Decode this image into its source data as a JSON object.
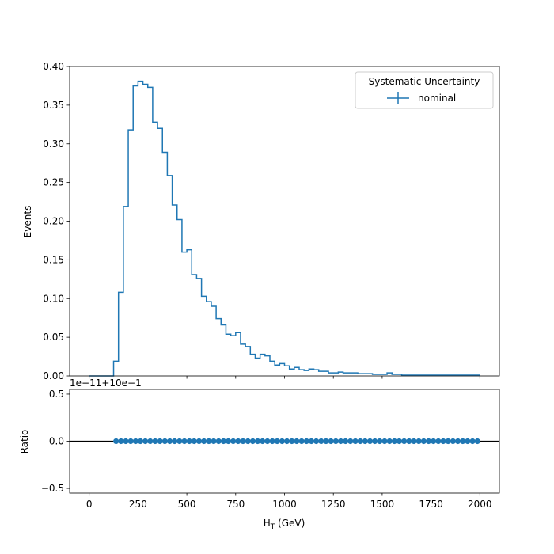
{
  "chart_data": [
    {
      "type": "histogram",
      "panel": "main",
      "ylabel": "Events",
      "xlim": [
        -100,
        2100
      ],
      "ylim": [
        0,
        0.4
      ],
      "yticks": [
        "0.00",
        "0.05",
        "0.10",
        "0.15",
        "0.20",
        "0.25",
        "0.30",
        "0.35",
        "0.40"
      ],
      "ytick_values": [
        0,
        0.05,
        0.1,
        0.15,
        0.2,
        0.25,
        0.3,
        0.35,
        0.4
      ],
      "xtick_values": [
        0,
        250,
        500,
        750,
        1000,
        1250,
        1500,
        1750,
        2000
      ],
      "bin_start": 0,
      "bin_width": 25,
      "values": [
        0,
        0,
        0,
        0,
        0,
        0.019,
        0.108,
        0.219,
        0.318,
        0.375,
        0.381,
        0.377,
        0.373,
        0.328,
        0.32,
        0.289,
        0.259,
        0.221,
        0.202,
        0.16,
        0.163,
        0.131,
        0.126,
        0.103,
        0.096,
        0.09,
        0.074,
        0.066,
        0.054,
        0.052,
        0.056,
        0.041,
        0.038,
        0.028,
        0.023,
        0.028,
        0.026,
        0.019,
        0.014,
        0.016,
        0.013,
        0.009,
        0.011,
        0.008,
        0.007,
        0.009,
        0.008,
        0.006,
        0.006,
        0.004,
        0.004,
        0.005,
        0.004,
        0.004,
        0.004,
        0.003,
        0.003,
        0.003,
        0.002,
        0.002,
        0.002,
        0.004,
        0.002,
        0.002,
        0.001,
        0.001,
        0.001,
        0.001,
        0.001,
        0.001,
        0.001,
        0.001,
        0.001,
        0.001,
        0.001,
        0.001,
        0.001,
        0.001,
        0.001,
        0.001
      ],
      "color": "#1f77b4",
      "legend": {
        "title": "Systematic Uncertainty",
        "entries": [
          "nominal"
        ],
        "placement": "upper right"
      }
    },
    {
      "type": "scatter",
      "panel": "ratio",
      "ylabel": "Ratio",
      "xlabel_prefix": "H",
      "xlabel_sub": "T",
      "xlabel_suffix": " (GeV)",
      "xlim": [
        -100,
        2100
      ],
      "ylim": [
        -0.55,
        0.55
      ],
      "yticks": [
        "−0.5",
        "0.0",
        "0.5"
      ],
      "ytick_values": [
        -0.5,
        0,
        0.5
      ],
      "xticks": [
        "0",
        "250",
        "500",
        "750",
        "1000",
        "1250",
        "1500",
        "1750",
        "2000"
      ],
      "xtick_values": [
        0,
        250,
        500,
        750,
        1000,
        1250,
        1500,
        1750,
        2000
      ],
      "offset_text": "1e−11+10e−1",
      "x_start": 137.5,
      "x_step": 25,
      "x_end": 1987.5,
      "y_value": 0,
      "reference_line": 0,
      "color": "#1f77b4"
    }
  ]
}
